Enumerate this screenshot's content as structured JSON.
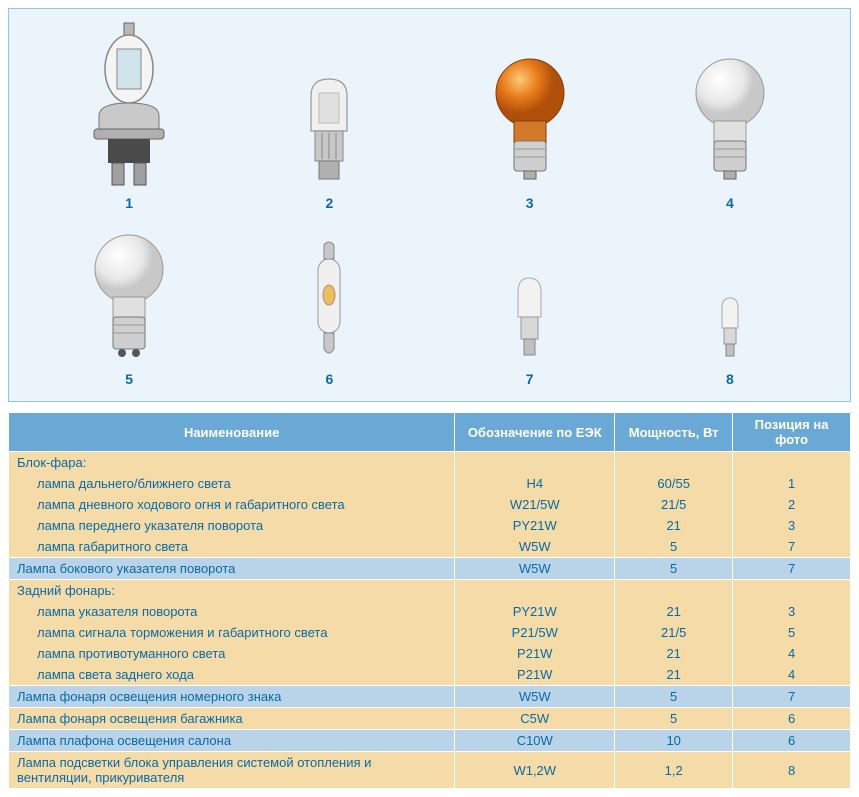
{
  "figure": {
    "panel_bg": "#eaf4fa",
    "panel_border": "#8fc6e0",
    "caption_color": "#0a6aa5",
    "bulbs_row1": [
      {
        "num": "1"
      },
      {
        "num": "2"
      },
      {
        "num": "3"
      },
      {
        "num": "4"
      }
    ],
    "bulbs_row2": [
      {
        "num": "5"
      },
      {
        "num": "6"
      },
      {
        "num": "7"
      },
      {
        "num": "8"
      }
    ]
  },
  "table": {
    "header_bg": "#6aa9d6",
    "header_fg": "#ffffff",
    "band_blue": "#b9d3e8",
    "band_beige": "#f5dba8",
    "text_color": "#0a6aa5",
    "col_widths": [
      "53%",
      "19%",
      "14%",
      "14%"
    ],
    "headers": [
      "Наименование",
      "Обозначение по ЕЭК",
      "Мощность, Вт",
      "Позиция на фото"
    ],
    "sections": [
      {
        "band": "beige",
        "rows": [
          {
            "name": "Блок-фара:",
            "indent": false,
            "code": "",
            "power": "",
            "pos": ""
          },
          {
            "name": "лампа дальнего/ближнего света",
            "indent": true,
            "code": "H4",
            "power": "60/55",
            "pos": "1"
          },
          {
            "name": "лампа дневного ходового огня и габаритного света",
            "indent": true,
            "code": "W21/5W",
            "power": "21/5",
            "pos": "2"
          },
          {
            "name": "лампа переднего указателя поворота",
            "indent": true,
            "code": "PY21W",
            "power": "21",
            "pos": "3"
          },
          {
            "name": "лампа габаритного света",
            "indent": true,
            "code": "W5W",
            "power": "5",
            "pos": "7"
          }
        ]
      },
      {
        "band": "blue",
        "rows": [
          {
            "name": "Лампа бокового указателя поворота",
            "indent": false,
            "code": "W5W",
            "power": "5",
            "pos": "7"
          }
        ]
      },
      {
        "band": "beige",
        "rows": [
          {
            "name": "Задний фонарь:",
            "indent": false,
            "code": "",
            "power": "",
            "pos": ""
          },
          {
            "name": "лампа указателя поворота",
            "indent": true,
            "code": "PY21W",
            "power": "21",
            "pos": "3"
          },
          {
            "name": "лампа сигнала торможения и габаритного света",
            "indent": true,
            "code": "P21/5W",
            "power": "21/5",
            "pos": "5"
          },
          {
            "name": "лампа противотуманного света",
            "indent": true,
            "code": "P21W",
            "power": "21",
            "pos": "4"
          },
          {
            "name": "лампа света заднего хода",
            "indent": true,
            "code": "P21W",
            "power": "21",
            "pos": "4"
          }
        ]
      },
      {
        "band": "blue",
        "rows": [
          {
            "name": "Лампа фонаря освещения номерного знака",
            "indent": false,
            "code": "W5W",
            "power": "5",
            "pos": "7"
          }
        ]
      },
      {
        "band": "beige",
        "rows": [
          {
            "name": "Лампа фонаря освещения багажника",
            "indent": false,
            "code": "C5W",
            "power": "5",
            "pos": "6"
          }
        ]
      },
      {
        "band": "blue",
        "rows": [
          {
            "name": "Лампа плафона освещения салона",
            "indent": false,
            "code": "C10W",
            "power": "10",
            "pos": "6"
          }
        ]
      },
      {
        "band": "beige",
        "rows": [
          {
            "name": "Лампа подсветки блока управления системой отопления и вентиляции, прикуривателя",
            "indent": false,
            "code": "W1,2W",
            "power": "1,2",
            "pos": "8"
          }
        ]
      }
    ]
  }
}
